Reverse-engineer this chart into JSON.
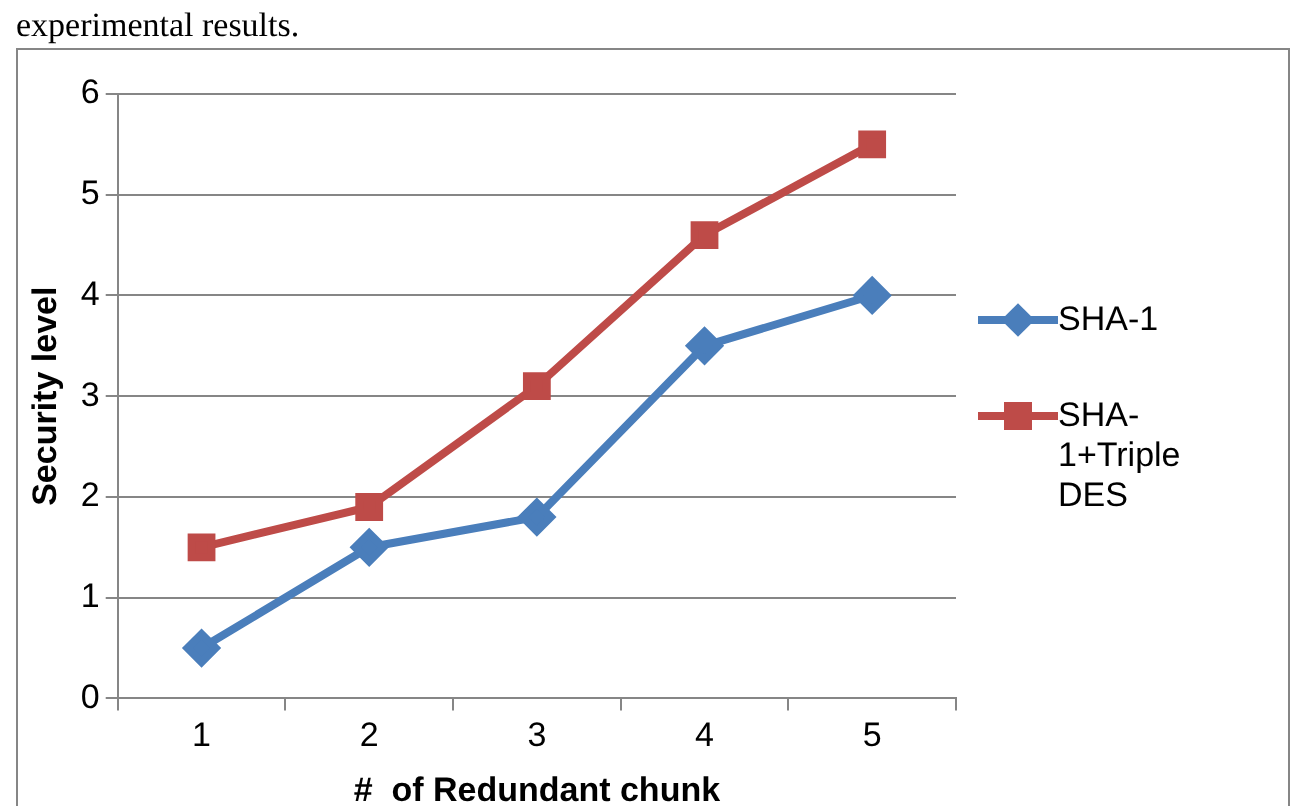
{
  "chart_data": {
    "type": "line",
    "xlabel": "#  of Redundant chunk",
    "ylabel": "Security level",
    "categories": [
      "1",
      "2",
      "3",
      "4",
      "5"
    ],
    "series": [
      {
        "name": "SHA-1",
        "color": "#4a7ebb",
        "marker": "diamond",
        "values": [
          0.5,
          1.5,
          1.8,
          3.5,
          4.0
        ]
      },
      {
        "name": "SHA-1+Triple DES",
        "color": "#be4b48",
        "marker": "square",
        "values": [
          1.5,
          1.9,
          3.1,
          4.6,
          5.5
        ]
      }
    ],
    "ylim": [
      0,
      6
    ],
    "yticks": [
      0,
      1,
      2,
      3,
      4,
      5,
      6
    ],
    "grid": "y",
    "legend": "right",
    "annotations": [
      "experimental results."
    ]
  }
}
